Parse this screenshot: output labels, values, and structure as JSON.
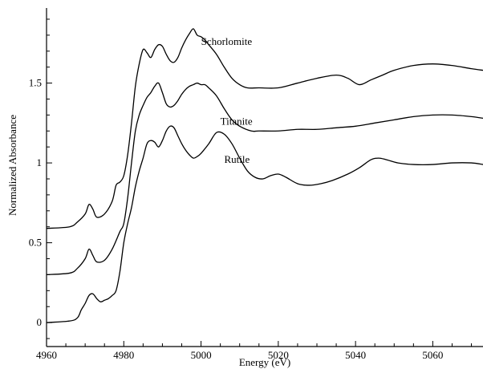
{
  "chart_data": {
    "type": "line",
    "title": "",
    "xlabel": "Energy (eV)",
    "ylabel": "Normalized Absorbance",
    "xlim": [
      4960,
      5073
    ],
    "ylim": [
      -0.15,
      1.97
    ],
    "xticks": [
      4960,
      4980,
      5000,
      5020,
      5040,
      5060
    ],
    "xtick_labels": [
      "4960",
      "4980",
      "5000",
      "5020",
      "5040",
      "5060"
    ],
    "yticks": [
      0,
      0.5,
      1,
      1.5
    ],
    "ytick_labels": [
      "0",
      "0.5",
      "1",
      "1.5"
    ],
    "grid": false,
    "legend": "none",
    "series": [
      {
        "name": "Schorlomite",
        "x": [
          4960,
          4966,
          4968,
          4970,
          4971,
          4972,
          4973,
          4975,
          4977,
          4978,
          4979,
          4980,
          4981,
          4982,
          4983,
          4984,
          4985,
          4986,
          4987,
          4988,
          4989,
          4990,
          4991,
          4992,
          4993,
          4994,
          4995,
          4996,
          4997,
          4998,
          4999,
          5000,
          5001,
          5002,
          5004,
          5006,
          5008,
          5010,
          5012,
          5015,
          5020,
          5025,
          5030,
          5035,
          5038,
          5041,
          5044,
          5047,
          5050,
          5055,
          5060,
          5065,
          5070,
          5073
        ],
        "y": [
          0.59,
          0.6,
          0.63,
          0.68,
          0.74,
          0.71,
          0.66,
          0.68,
          0.76,
          0.86,
          0.88,
          0.92,
          1.05,
          1.25,
          1.48,
          1.62,
          1.71,
          1.69,
          1.66,
          1.71,
          1.74,
          1.73,
          1.68,
          1.64,
          1.63,
          1.66,
          1.72,
          1.77,
          1.81,
          1.84,
          1.8,
          1.79,
          1.77,
          1.74,
          1.68,
          1.6,
          1.53,
          1.49,
          1.47,
          1.47,
          1.47,
          1.5,
          1.53,
          1.55,
          1.53,
          1.49,
          1.52,
          1.55,
          1.58,
          1.61,
          1.62,
          1.61,
          1.59,
          1.58
        ]
      },
      {
        "name": "Titanite",
        "x": [
          4960,
          4966,
          4968,
          4970,
          4971,
          4972,
          4973,
          4975,
          4977,
          4979,
          4980,
          4981,
          4982,
          4983,
          4984,
          4985,
          4986,
          4987,
          4988,
          4989,
          4990,
          4991,
          4992,
          4993,
          4994,
          4995,
          4996,
          4997,
          4998,
          4999,
          5000,
          5001,
          5002,
          5004,
          5006,
          5008,
          5010,
          5013,
          5015,
          5020,
          5025,
          5030,
          5035,
          5040,
          5045,
          5050,
          5055,
          5060,
          5065,
          5070,
          5073
        ],
        "y": [
          0.3,
          0.31,
          0.34,
          0.4,
          0.46,
          0.42,
          0.38,
          0.39,
          0.46,
          0.57,
          0.62,
          0.78,
          1.0,
          1.2,
          1.3,
          1.36,
          1.41,
          1.44,
          1.48,
          1.5,
          1.44,
          1.37,
          1.35,
          1.36,
          1.39,
          1.43,
          1.46,
          1.48,
          1.49,
          1.5,
          1.49,
          1.49,
          1.47,
          1.42,
          1.34,
          1.27,
          1.23,
          1.2,
          1.2,
          1.2,
          1.21,
          1.21,
          1.22,
          1.23,
          1.25,
          1.27,
          1.29,
          1.3,
          1.3,
          1.29,
          1.28
        ]
      },
      {
        "name": "Rutile",
        "x": [
          4960,
          4966,
          4968,
          4969,
          4970,
          4971,
          4972,
          4973,
          4974,
          4975,
          4976,
          4977,
          4978,
          4979,
          4980,
          4981,
          4982,
          4983,
          4984,
          4985,
          4986,
          4987,
          4988,
          4989,
          4990,
          4991,
          4992,
          4993,
          4994,
          4995,
          4996,
          4997,
          4998,
          4999,
          5000,
          5002,
          5004,
          5006,
          5008,
          5010,
          5012,
          5014,
          5016,
          5018,
          5020,
          5022,
          5025,
          5028,
          5031,
          5034,
          5038,
          5041,
          5044,
          5046,
          5048,
          5051,
          5055,
          5060,
          5065,
          5070,
          5073
        ],
        "y": [
          0.0,
          0.01,
          0.03,
          0.08,
          0.12,
          0.17,
          0.18,
          0.15,
          0.13,
          0.14,
          0.15,
          0.17,
          0.2,
          0.32,
          0.5,
          0.62,
          0.72,
          0.85,
          0.95,
          1.03,
          1.12,
          1.14,
          1.13,
          1.1,
          1.14,
          1.2,
          1.23,
          1.22,
          1.17,
          1.12,
          1.08,
          1.05,
          1.03,
          1.04,
          1.06,
          1.12,
          1.19,
          1.18,
          1.12,
          1.03,
          0.95,
          0.91,
          0.9,
          0.92,
          0.93,
          0.91,
          0.87,
          0.86,
          0.87,
          0.89,
          0.93,
          0.97,
          1.02,
          1.03,
          1.02,
          1.0,
          0.99,
          0.99,
          1.0,
          1.0,
          0.99
        ]
      }
    ],
    "annotations": [
      {
        "text": "Schorlomite",
        "x": 5000,
        "y": 1.74
      },
      {
        "text": "Titanite",
        "x": 5005,
        "y": 1.24
      },
      {
        "text": "Rutile",
        "x": 5006,
        "y": 1.0
      }
    ]
  }
}
